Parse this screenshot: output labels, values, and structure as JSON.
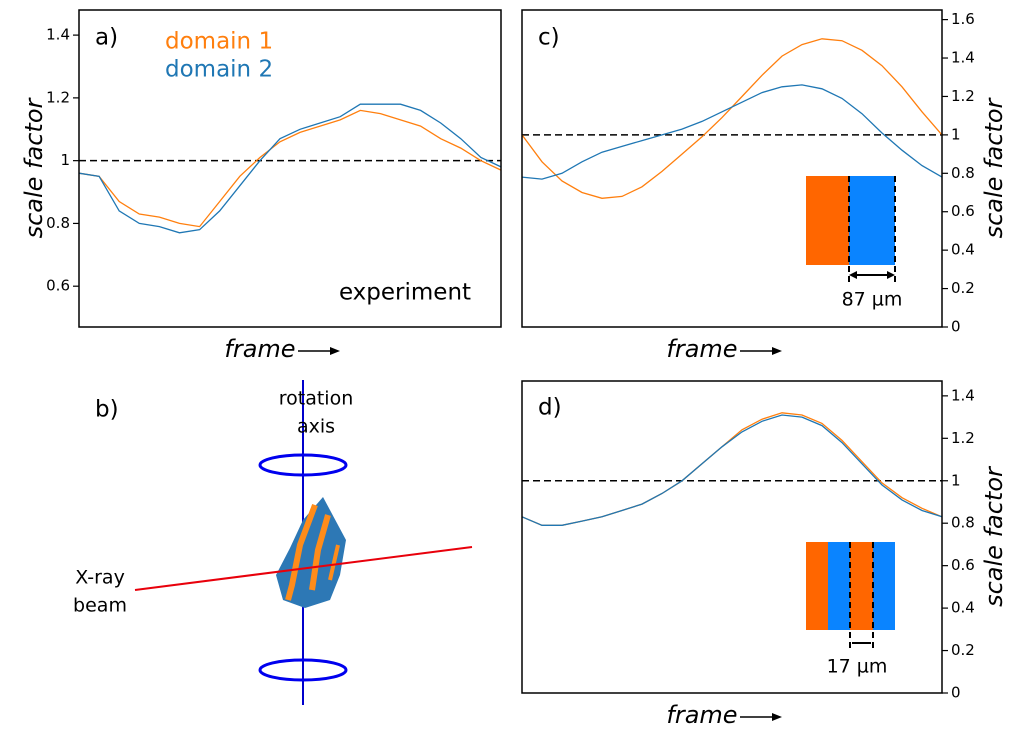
{
  "chart_data": [
    {
      "type": "line",
      "panel_label": "a)",
      "ylabel": "scale factor",
      "xlabel": "frame",
      "annotation": "experiment",
      "ylim": [
        0.47,
        1.48
      ],
      "yticks": [
        0.6,
        0.8,
        1.0,
        1.2,
        1.4
      ],
      "yaxis_side": "left",
      "hline": 1.0,
      "series": [
        {
          "name": "domain 1",
          "color": "#ff7f0e",
          "values": [
            0.96,
            0.95,
            0.87,
            0.83,
            0.82,
            0.8,
            0.79,
            0.87,
            0.95,
            1.01,
            1.06,
            1.09,
            1.11,
            1.13,
            1.16,
            1.15,
            1.13,
            1.11,
            1.07,
            1.04,
            1.0,
            0.97
          ]
        },
        {
          "name": "domain 2",
          "color": "#1f77b4",
          "values": [
            0.96,
            0.95,
            0.84,
            0.8,
            0.79,
            0.77,
            0.78,
            0.84,
            0.92,
            1.0,
            1.07,
            1.1,
            1.12,
            1.14,
            1.18,
            1.18,
            1.18,
            1.16,
            1.12,
            1.07,
            1.01,
            0.98
          ]
        }
      ]
    },
    {
      "type": "line",
      "panel_label": "c)",
      "ylabel": "scale factor",
      "xlabel": "frame",
      "annotation": "87 µm",
      "ylim": [
        0,
        1.65
      ],
      "yticks": [
        0.0,
        0.2,
        0.4,
        0.6,
        0.8,
        1.0,
        1.2,
        1.4,
        1.6
      ],
      "yaxis_side": "right",
      "hline": 1.0,
      "series": [
        {
          "color": "#ff7f0e",
          "values": [
            1.0,
            0.86,
            0.76,
            0.7,
            0.67,
            0.68,
            0.73,
            0.81,
            0.9,
            0.99,
            1.09,
            1.2,
            1.31,
            1.41,
            1.47,
            1.5,
            1.49,
            1.44,
            1.36,
            1.25,
            1.12,
            1.0
          ]
        },
        {
          "color": "#1f77b4",
          "values": [
            0.78,
            0.77,
            0.8,
            0.86,
            0.91,
            0.94,
            0.97,
            1.0,
            1.03,
            1.07,
            1.12,
            1.17,
            1.22,
            1.25,
            1.26,
            1.24,
            1.19,
            1.11,
            1.01,
            0.92,
            0.84,
            0.78
          ]
        }
      ]
    },
    {
      "type": "line",
      "panel_label": "d)",
      "ylabel": "scale factor",
      "xlabel": "frame",
      "annotation": "17 µm",
      "ylim": [
        0,
        1.47
      ],
      "yticks": [
        0.0,
        0.2,
        0.4,
        0.6,
        0.8,
        1.0,
        1.2,
        1.4
      ],
      "yaxis_side": "right",
      "hline": 1.0,
      "series": [
        {
          "color": "#ff7f0e",
          "values": [
            0.83,
            0.79,
            0.79,
            0.81,
            0.83,
            0.86,
            0.89,
            0.94,
            1.0,
            1.08,
            1.16,
            1.24,
            1.29,
            1.32,
            1.31,
            1.27,
            1.19,
            1.09,
            0.99,
            0.92,
            0.87,
            0.83
          ]
        },
        {
          "color": "#1f77b4",
          "values": [
            0.83,
            0.79,
            0.79,
            0.81,
            0.83,
            0.86,
            0.89,
            0.94,
            1.0,
            1.08,
            1.16,
            1.23,
            1.28,
            1.31,
            1.3,
            1.26,
            1.18,
            1.08,
            0.98,
            0.91,
            0.86,
            0.83
          ]
        }
      ]
    }
  ],
  "diagram": {
    "panel_label": "b)",
    "rotation_axis": [
      "rotation",
      "axis"
    ],
    "beam": [
      "X-ray",
      "beam"
    ]
  }
}
